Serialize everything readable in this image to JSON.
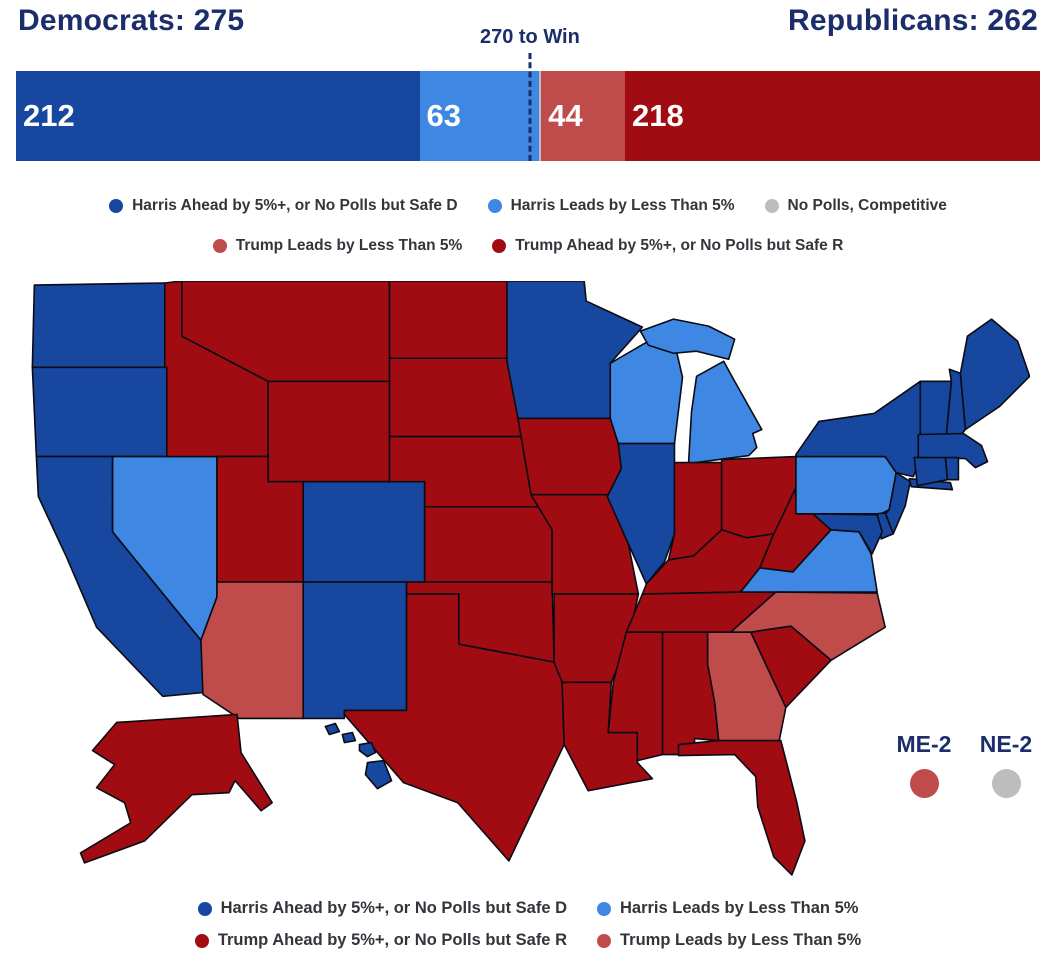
{
  "header": {
    "democrats": "Democrats: 275",
    "to_win": "270 to Win",
    "republicans": "Republicans: 262"
  },
  "colors": {
    "safe_d": "#17479E",
    "lean_d": "#3E87E2",
    "toss_up": "#BDBDBD",
    "lean_r": "#C04B4B",
    "safe_r": "#A00C11",
    "navy": "#1C2D6B"
  },
  "bar": {
    "total": 538,
    "threshold": 270,
    "segments": [
      {
        "key": "safe_d",
        "value": 212,
        "label": "212"
      },
      {
        "key": "lean_d",
        "value": 63,
        "label": "63"
      },
      {
        "key": "toss_up",
        "value": 1,
        "label": ""
      },
      {
        "key": "lean_r",
        "value": 44,
        "label": "44"
      },
      {
        "key": "safe_r",
        "value": 218,
        "label": "218"
      }
    ]
  },
  "legend": {
    "top": [
      [
        {
          "key": "safe_d",
          "label": "Harris Ahead by 5%+, or No Polls but Safe D"
        },
        {
          "key": "lean_d",
          "label": "Harris Leads by Less Than 5%"
        },
        {
          "key": "toss_up",
          "label": "No Polls, Competitive"
        }
      ],
      [
        {
          "key": "lean_r",
          "label": "Trump Leads by Less Than 5%"
        },
        {
          "key": "safe_r",
          "label": "Trump Ahead by 5%+, or No Polls but Safe R"
        }
      ]
    ],
    "bottom": [
      [
        {
          "key": "safe_d",
          "label": "Harris Ahead by 5%+, or No Polls but Safe D"
        },
        {
          "key": "lean_d",
          "label": "Harris Leads by Less Than 5%"
        }
      ],
      [
        {
          "key": "safe_r",
          "label": "Trump Ahead by 5%+, or No Polls but Safe R"
        },
        {
          "key": "lean_r",
          "label": "Trump Leads by Less Than 5%"
        }
      ]
    ]
  },
  "districts": [
    {
      "label": "ME-2",
      "key": "lean_r"
    },
    {
      "label": "NE-2",
      "key": "toss_up"
    }
  ],
  "map": {
    "states": {
      "WA": "safe_d",
      "OR": "safe_d",
      "CA": "safe_d",
      "NV": "lean_d",
      "ID": "safe_r",
      "MT": "safe_r",
      "WY": "safe_r",
      "UT": "safe_r",
      "CO": "safe_d",
      "AZ": "lean_r",
      "NM": "safe_d",
      "ND": "safe_r",
      "SD": "safe_r",
      "NE": "safe_r",
      "KS": "safe_r",
      "OK": "safe_r",
      "TX": "safe_r",
      "MN": "safe_d",
      "IA": "safe_r",
      "MO": "safe_r",
      "AR": "safe_r",
      "LA": "safe_r",
      "WI": "lean_d",
      "IL": "safe_d",
      "MI": "lean_d",
      "IN": "safe_r",
      "OH": "safe_r",
      "KY": "safe_r",
      "TN": "safe_r",
      "MS": "safe_r",
      "AL": "safe_r",
      "GA": "lean_r",
      "FL": "safe_r",
      "SC": "safe_r",
      "NC": "lean_r",
      "VA": "lean_d",
      "WV": "safe_r",
      "PA": "lean_d",
      "NY": "safe_d",
      "NJ": "safe_d",
      "DE": "safe_d",
      "MD": "safe_d",
      "VT": "safe_d",
      "NH": "safe_d",
      "MA": "safe_d",
      "RI": "safe_d",
      "CT": "safe_d",
      "ME": "safe_d",
      "AK": "safe_r",
      "HI": "safe_d"
    }
  },
  "chart_data": {
    "type": "bar",
    "title": "270 to Win",
    "categories": [
      "Harris Ahead by 5%+, or No Polls but Safe D",
      "Harris Leads by Less Than 5%",
      "No Polls, Competitive",
      "Trump Leads by Less Than 5%",
      "Trump Ahead by 5%+, or No Polls but Safe R"
    ],
    "values": [
      212,
      63,
      1,
      44,
      218
    ],
    "annotations": [
      "Democrats: 275",
      "Republicans: 262",
      "270 to Win"
    ],
    "threshold": 270,
    "total": 538
  }
}
